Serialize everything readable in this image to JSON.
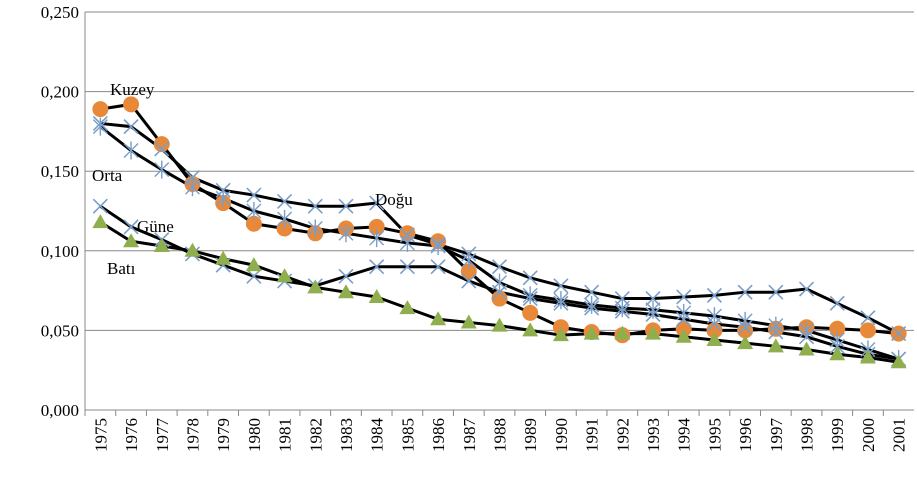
{
  "chart_data": {
    "type": "line",
    "categories": [
      "1975",
      "1976",
      "1977",
      "1978",
      "1979",
      "1980",
      "1981",
      "1982",
      "1983",
      "1984",
      "1985",
      "1986",
      "1987",
      "1988",
      "1989",
      "1990",
      "1991",
      "1992",
      "1993",
      "1994",
      "1995",
      "1996",
      "1997",
      "1998",
      "1999",
      "2000",
      "2001"
    ],
    "series": [
      {
        "name": "Kuzey",
        "color": "#e8893a",
        "marker": "circle",
        "values": [
          0.189,
          0.192,
          0.167,
          0.142,
          0.13,
          0.117,
          0.114,
          0.111,
          0.114,
          0.115,
          0.111,
          0.106,
          0.087,
          0.07,
          0.061,
          0.052,
          0.049,
          0.047,
          0.05,
          0.051,
          0.05,
          0.05,
          0.051,
          0.052,
          0.051,
          0.05,
          0.048
        ]
      },
      {
        "name": "Doğu",
        "color": "#7a9ec8",
        "marker": "x",
        "values": [
          0.18,
          0.178,
          0.164,
          0.146,
          0.138,
          0.135,
          0.131,
          0.128,
          0.128,
          0.13,
          0.11,
          0.104,
          0.098,
          0.09,
          0.083,
          0.078,
          0.074,
          0.07,
          0.07,
          0.071,
          0.072,
          0.074,
          0.074,
          0.076,
          0.067,
          0.058,
          0.048
        ]
      },
      {
        "name": "Orta",
        "color": "#7a9ec8",
        "marker": "star",
        "values": [
          0.178,
          0.163,
          0.151,
          0.14,
          0.133,
          0.125,
          0.12,
          0.114,
          0.111,
          0.108,
          0.105,
          0.103,
          0.094,
          0.08,
          0.072,
          0.069,
          0.066,
          0.064,
          0.063,
          0.061,
          0.059,
          0.056,
          0.053,
          0.05,
          0.044,
          0.038,
          0.032
        ]
      },
      {
        "name": "Güne",
        "color": "#7a9ec8",
        "marker": "x",
        "values": [
          0.128,
          0.115,
          0.107,
          0.098,
          0.091,
          0.084,
          0.081,
          0.078,
          0.084,
          0.09,
          0.09,
          0.09,
          0.081,
          0.074,
          0.07,
          0.067,
          0.064,
          0.062,
          0.06,
          0.057,
          0.054,
          0.052,
          0.049,
          0.046,
          0.04,
          0.035,
          0.032
        ]
      },
      {
        "name": "Batı",
        "color": "#8fae4e",
        "marker": "triangle",
        "values": [
          0.118,
          0.106,
          0.103,
          0.1,
          0.095,
          0.091,
          0.084,
          0.077,
          0.074,
          0.071,
          0.064,
          0.057,
          0.055,
          0.053,
          0.05,
          0.047,
          0.048,
          0.048,
          0.048,
          0.046,
          0.044,
          0.042,
          0.04,
          0.038,
          0.035,
          0.033,
          0.03
        ]
      }
    ],
    "ylim": [
      0,
      0.25
    ],
    "yticks": [
      {
        "value": 0,
        "label": "0,000"
      },
      {
        "value": 0.05,
        "label": "0,050"
      },
      {
        "value": 0.1,
        "label": "0,100"
      },
      {
        "value": 0.15,
        "label": "0,150"
      },
      {
        "value": 0.2,
        "label": "0,200"
      },
      {
        "value": 0.25,
        "label": "0,250"
      }
    ],
    "grid": true,
    "line_color": "#000000"
  }
}
